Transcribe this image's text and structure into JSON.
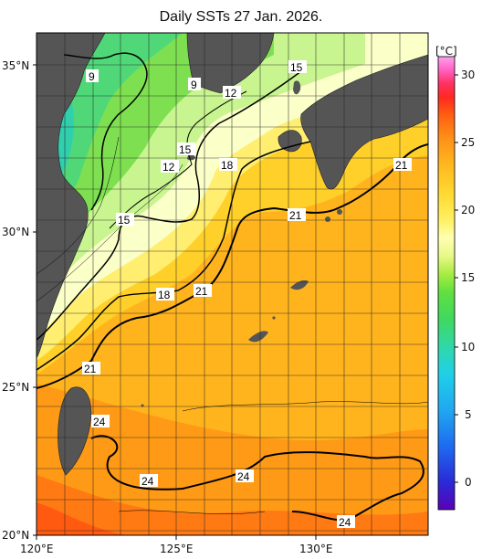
{
  "title": "Daily SSTs 27 Jan. 2026.",
  "axes": {
    "lon_labels": [
      "120°E",
      "125°E",
      "130°E"
    ],
    "lat_labels": [
      "35°N",
      "30°N",
      "25°N",
      "20°N"
    ]
  },
  "colorbar": {
    "unit": "[°C]",
    "ticks": [
      "30",
      "25",
      "20",
      "15",
      "10",
      "5",
      "0"
    ],
    "colors": [
      "#5b00b8",
      "#2a2ad6",
      "#1e6bf0",
      "#20a8f0",
      "#20d0e8",
      "#30d8a8",
      "#40d860",
      "#60e040",
      "#a8ec40",
      "#e8f888",
      "#ffffb0",
      "#fff060",
      "#ffd830",
      "#ffb820",
      "#ff9018",
      "#ff6010",
      "#ff2a20",
      "#ff3060",
      "#ff60c0",
      "#ffa0f0"
    ]
  },
  "contours": {
    "labels": [
      "9",
      "9",
      "12",
      "15",
      "15",
      "12",
      "18",
      "15",
      "21",
      "21",
      "18",
      "21",
      "21",
      "24",
      "24",
      "24",
      "24"
    ]
  }
}
